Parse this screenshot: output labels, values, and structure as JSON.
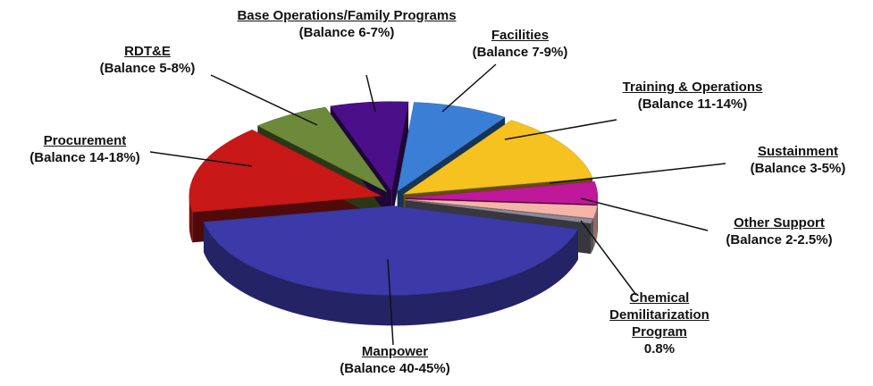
{
  "chart_data": {
    "type": "pie",
    "categories": [
      "Facilities",
      "Training & Operations",
      "Sustainment",
      "Other Support",
      "Chemical Demilitarization Program",
      "Manpower",
      "Procurement",
      "RDT&E",
      "Base Operations/Family Programs"
    ],
    "details": [
      "(Balance 7-9%)",
      "(Balance 11-14%)",
      "(Balance 3-5%)",
      "(Balance 2-2.5%)",
      "0.8%",
      "(Balance 40-45%)",
      "(Balance 14-18%)",
      "(Balance 5-8%)",
      "(Balance 6-7%)"
    ],
    "values": [
      8,
      12.5,
      4,
      2.25,
      0.8,
      42.5,
      16,
      6.5,
      6.5
    ],
    "colors": [
      "#3a7fd5",
      "#f5c21f",
      "#c0189a",
      "#f4b5a8",
      "#8c8a99",
      "#3b3aa8",
      "#c81818",
      "#6d8a3a",
      "#4b0f8a"
    ]
  }
}
